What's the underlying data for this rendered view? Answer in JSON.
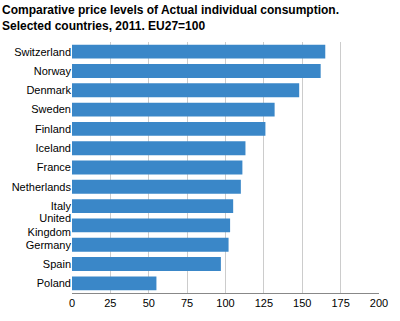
{
  "chart_data": {
    "type": "bar",
    "orientation": "horizontal",
    "title": "Comparative price levels of Actual individual consumption.",
    "subtitle": "Selected countries, 2011. EU27=100",
    "categories": [
      "Switzerland",
      "Norway",
      "Denmark",
      "Sweden",
      "Finland",
      "Iceland",
      "France",
      "Netherlands",
      "Italy",
      "United Kingdom",
      "Germany",
      "Spain",
      "Poland"
    ],
    "values": [
      165,
      162,
      148,
      132,
      126,
      113,
      111,
      110,
      105,
      103,
      102,
      97,
      55
    ],
    "color": "#3a87c8",
    "xlim": [
      0,
      200
    ],
    "xticks": [
      0,
      25,
      50,
      75,
      100,
      125,
      150,
      175,
      200
    ],
    "grid": true
  }
}
